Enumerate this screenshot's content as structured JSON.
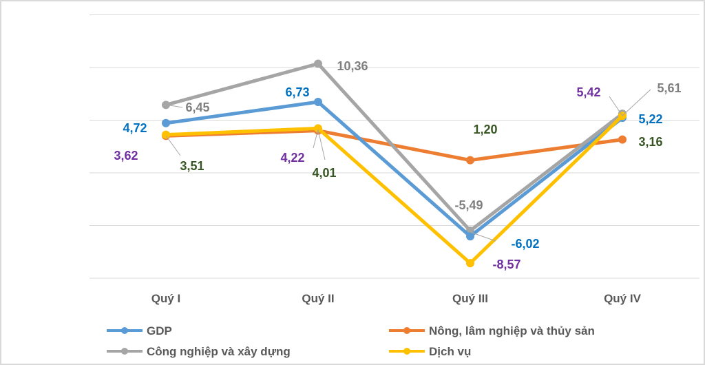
{
  "chart_data": {
    "type": "line",
    "title": "",
    "xlabel": "",
    "ylabel": "",
    "categories": [
      "Quý I",
      "Quý II",
      "Quý III",
      "Quý IV"
    ],
    "ylim": [
      -10,
      15
    ],
    "grid": true,
    "legend_position": "bottom",
    "series": [
      {
        "name": "GDP",
        "values": [
          4.72,
          6.73,
          -6.02,
          5.22
        ],
        "labels": [
          "4,72",
          "6,73",
          "-6,02",
          "5,22"
        ],
        "color": "#5B9BD5",
        "label_color": "#0070C0"
      },
      {
        "name": "Nông, lâm nghiệp và thủy sản",
        "values": [
          3.51,
          4.01,
          1.2,
          3.16
        ],
        "labels": [
          "3,51",
          "4,01",
          "1,20",
          "3,16"
        ],
        "color": "#ED7D31",
        "label_color": "#375623"
      },
      {
        "name": "Công nghiệp và xây dựng",
        "values": [
          6.45,
          10.36,
          -5.49,
          5.61
        ],
        "labels": [
          "6,45",
          "10,36",
          "-5,49",
          "5,61"
        ],
        "color": "#A5A5A5",
        "label_color": "#7F7F7F"
      },
      {
        "name": "Dịch vụ",
        "values": [
          3.62,
          4.22,
          -8.57,
          5.42
        ],
        "labels": [
          "3,62",
          "4,22",
          "-8,57",
          "5,42"
        ],
        "color": "#FFC000",
        "label_color": "#7030A0"
      }
    ]
  }
}
